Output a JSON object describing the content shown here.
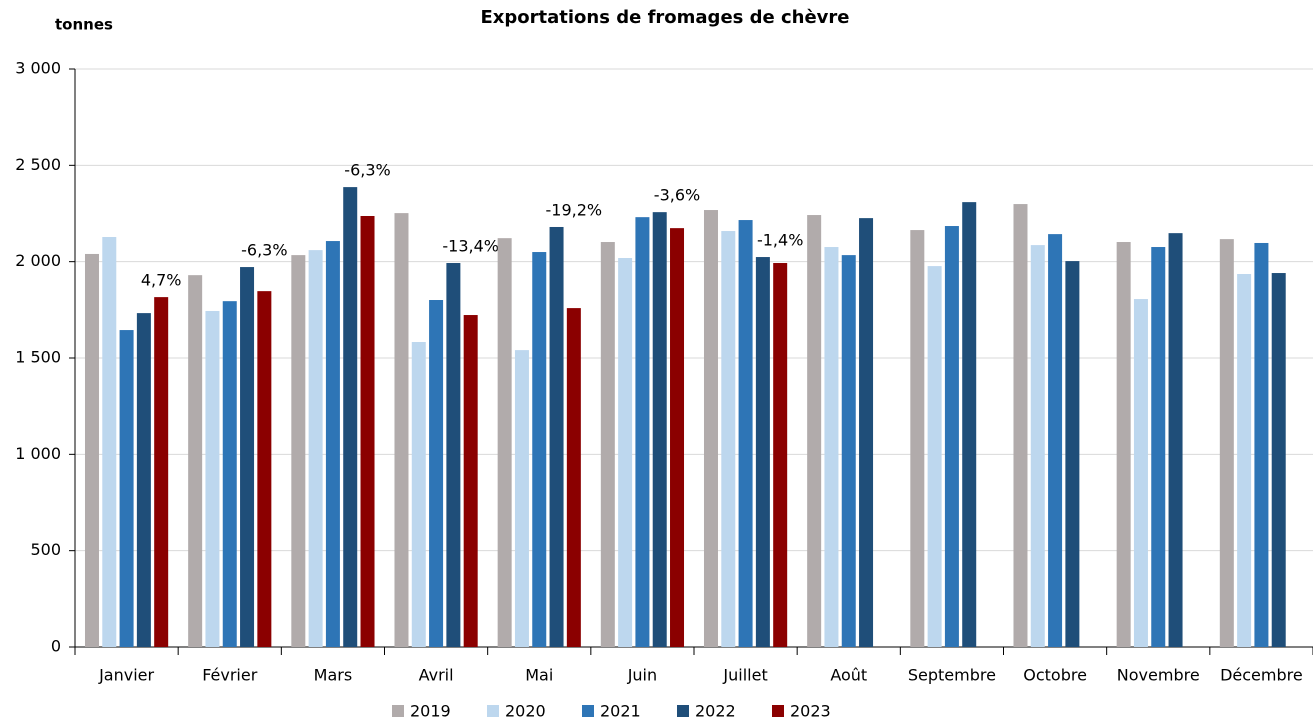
{
  "chart_data": {
    "type": "bar",
    "title": "Exportations de fromages de chèvre",
    "y_label": "tonnes",
    "categories": [
      "Janvier",
      "Février",
      "Mars",
      "Avril",
      "Mai",
      "Juin",
      "Juillet",
      "Août",
      "Septembre",
      "Octobre",
      "Novembre",
      "Décembre"
    ],
    "series": [
      {
        "name": "2019",
        "color": "#b1abab",
        "values": [
          2040,
          1930,
          2034,
          2252,
          2122,
          2102,
          2268,
          2242,
          2164,
          2299,
          2102,
          2117
        ]
      },
      {
        "name": "2020",
        "color": "#bdd7ee",
        "values": [
          2128,
          1744,
          2060,
          1583,
          1541,
          2019,
          2159,
          2076,
          1977,
          2086,
          1806,
          1936
        ]
      },
      {
        "name": "2021",
        "color": "#2e75b6",
        "values": [
          1645,
          1795,
          2107,
          1801,
          2050,
          2231,
          2216,
          2034,
          2185,
          2143,
          2076,
          2097
        ]
      },
      {
        "name": "2022",
        "color": "#1f4e79",
        "values": [
          1733,
          1972,
          2387,
          1993,
          2180,
          2257,
          2024,
          2226,
          2309,
          2003,
          2148,
          1941
        ]
      },
      {
        "name": "2023",
        "color": "#8b0000",
        "values": [
          1816,
          1847,
          2237,
          1723,
          1759,
          2174,
          1993,
          null,
          null,
          null,
          null,
          null
        ]
      }
    ],
    "annotations": [
      "4,7%",
      "-6,3%",
      "-6,3%",
      "-13,4%",
      "-19,2%",
      "-3,6%",
      "-1,4%",
      null,
      null,
      null,
      null,
      null
    ],
    "ylim": [
      0,
      3000
    ],
    "yticks": [
      0,
      500,
      {
        "value": 1000,
        "label": "1 000"
      },
      {
        "value": 1500,
        "label": "1 500"
      },
      {
        "value": 2000,
        "label": "2 000"
      },
      {
        "value": 2500,
        "label": "2 500"
      },
      {
        "value": 3000,
        "label": "3 000"
      }
    ],
    "grid": true,
    "legend": "bottom"
  }
}
